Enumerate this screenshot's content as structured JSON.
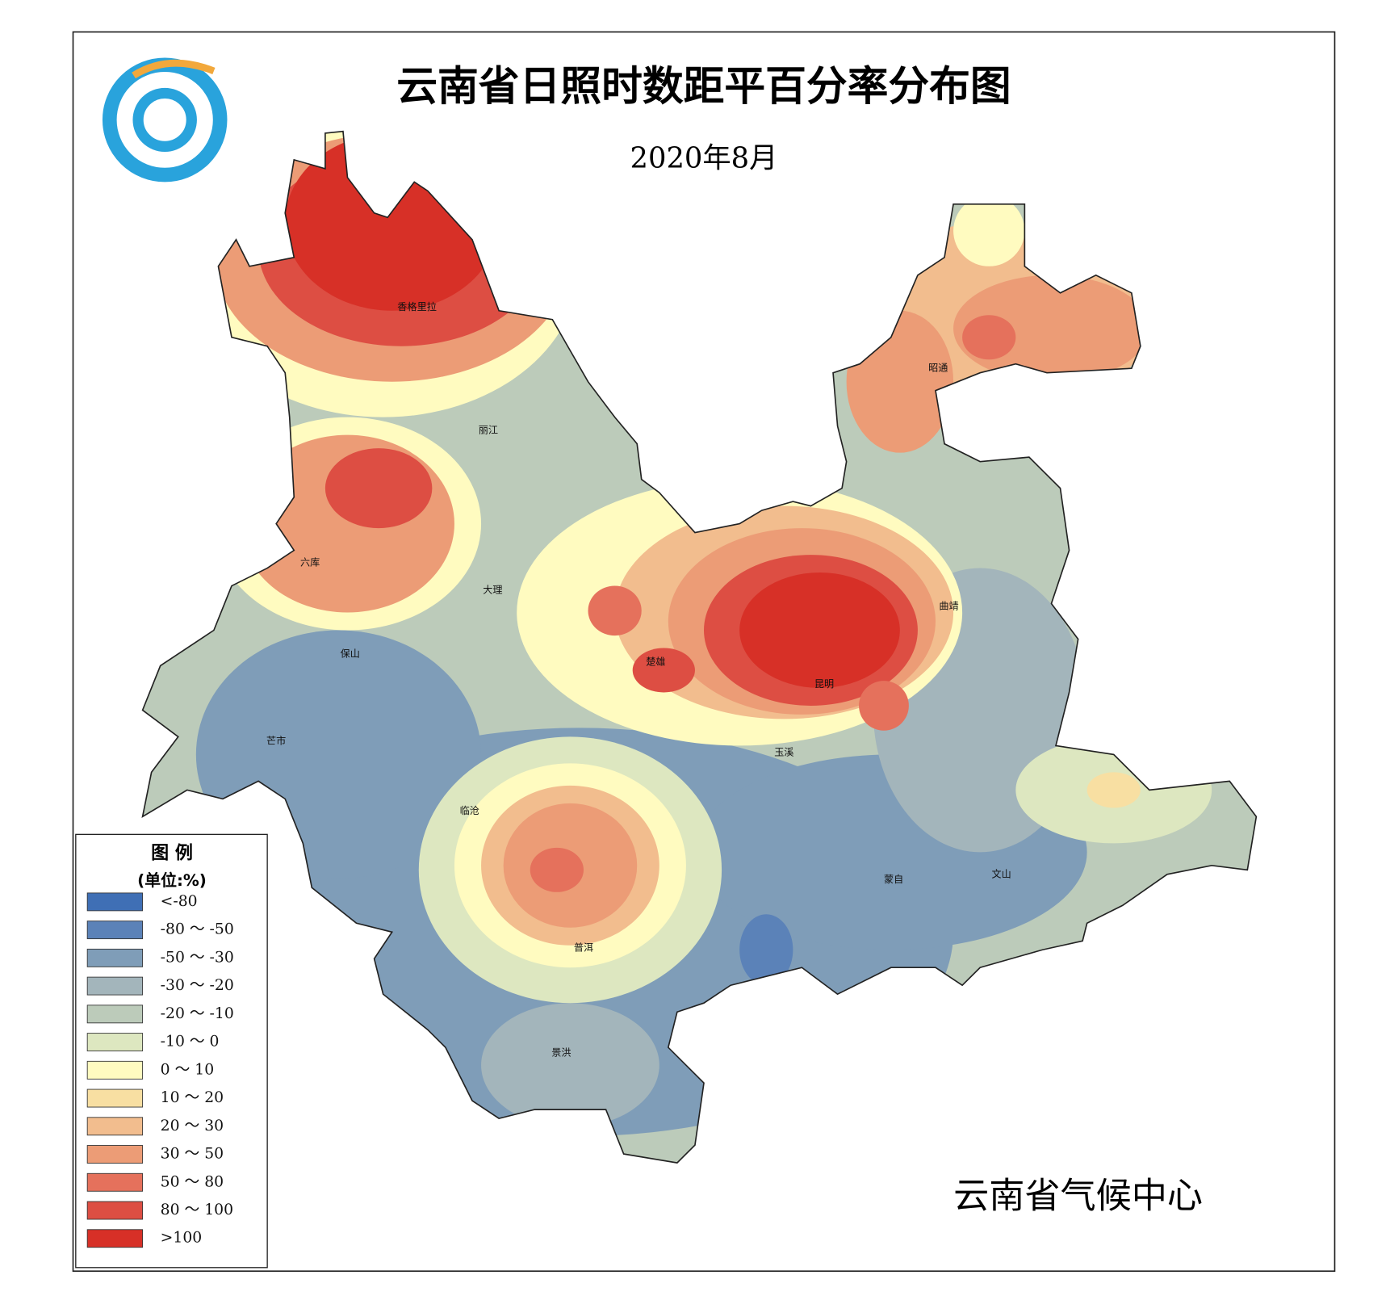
{
  "title": "云南省日照时数距平百分率分布图",
  "subtitle": "2020年8月",
  "credit": "云南省气候中心",
  "legend": {
    "title": "图 例",
    "unit": "(单位:%)",
    "items": [
      {
        "label": "<-80",
        "color": "#3f6fb5"
      },
      {
        "label": "-80 ～ -50",
        "color": "#5b82b8"
      },
      {
        "label": "-50 ～ -30",
        "color": "#7f9db8"
      },
      {
        "label": "-30 ～ -20",
        "color": "#a3b5bb"
      },
      {
        "label": "-20 ～ -10",
        "color": "#bccbba"
      },
      {
        "label": "-10 ～ 0",
        "color": "#dde7c0"
      },
      {
        "label": "0 ～ 10",
        "color": "#fffbc0"
      },
      {
        "label": "10 ～ 20",
        "color": "#f8dfa2"
      },
      {
        "label": "20 ～ 30",
        "color": "#f2bd8e"
      },
      {
        "label": "30 ～ 50",
        "color": "#ec9c76"
      },
      {
        "label": "50 ～ 80",
        "color": "#e5715c"
      },
      {
        "label": "80 ～ 100",
        "color": "#dd4e43"
      },
      {
        "label": ">100",
        "color": "#d73027"
      }
    ]
  },
  "cities": [
    "香格里拉",
    "丽江",
    "六库",
    "大理",
    "保山",
    "芒市",
    "临沧",
    "普洱",
    "景洪",
    "楚雄",
    "昆明",
    "玉溪",
    "曲靖",
    "昭通",
    "蒙自",
    "文山"
  ]
}
